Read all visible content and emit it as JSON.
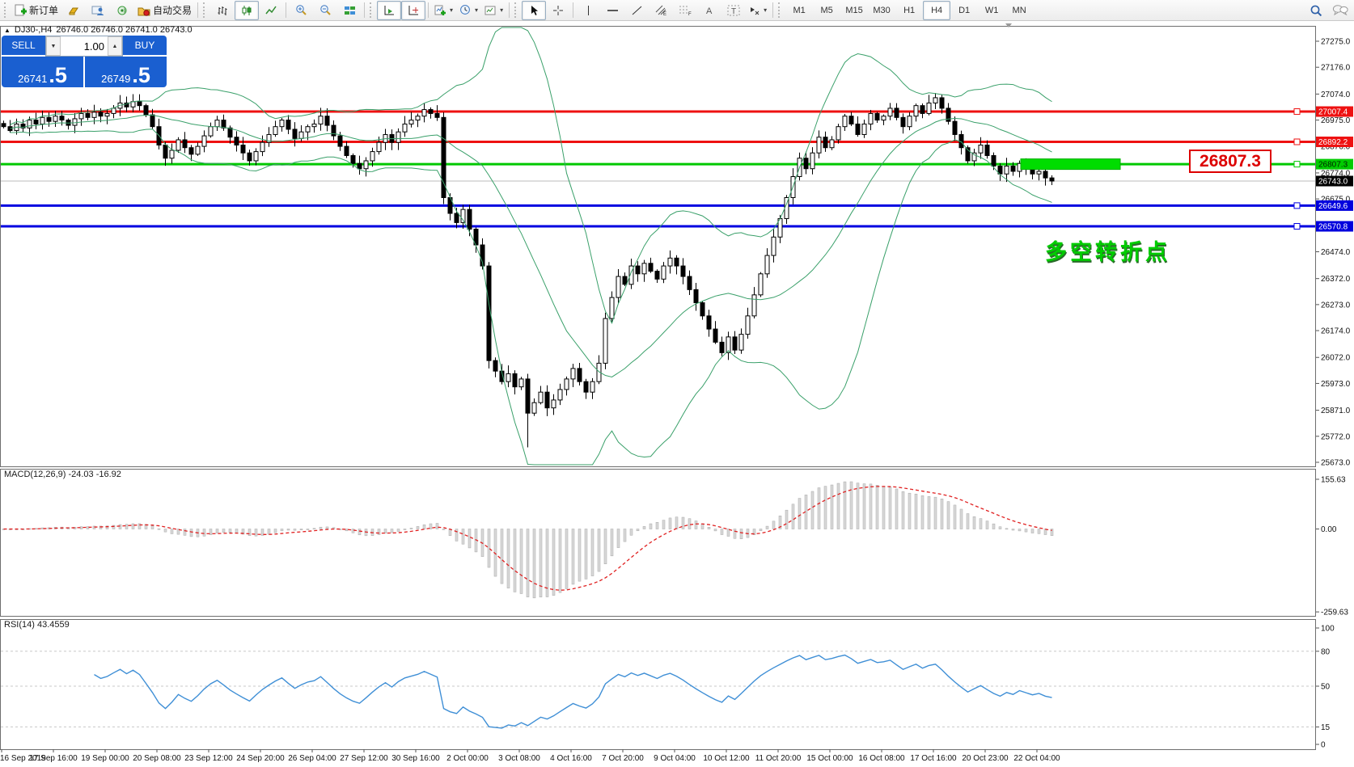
{
  "toolbar": {
    "new_order": "新订单",
    "autotrading": "自动交易",
    "timeframes": [
      "M1",
      "M5",
      "M15",
      "M30",
      "H1",
      "H4",
      "D1",
      "W1",
      "MN"
    ],
    "active_timeframe": "H4"
  },
  "header": {
    "collapse_arrow": "▲",
    "title": "DJ30-,H4",
    "ohlc": "26746.0 26746.0 26741.0 26743.0"
  },
  "one_click": {
    "sell_label": "SELL",
    "buy_label": "BUY",
    "volume": "1.00",
    "sell_price": "26741",
    "sell_pip": ".5",
    "buy_price": "26749",
    "buy_pip": ".5"
  },
  "annotation": {
    "text": "多空转折点",
    "color": "#00cc00"
  },
  "price_label": {
    "text": "26807.3",
    "color": "#dd0000"
  },
  "indicator_labels": {
    "macd": "MACD(12,26,9) -24.03 -16.92",
    "rsi": "RSI(14) 43.4559"
  },
  "axis": {
    "main_ticks": [
      27275.0,
      27176.0,
      27074.0,
      26975.0,
      26876.0,
      26774.0,
      26675.0,
      26474.0,
      26372.0,
      26273.0,
      26174.0,
      26072.0,
      25973.0,
      25871.0,
      25772.0,
      25673.0
    ],
    "macd_ticks": [
      155.63,
      0.0,
      -259.63
    ],
    "rsi_ticks": [
      100,
      80,
      50,
      15,
      0
    ],
    "badges": [
      {
        "text": "27007.4",
        "price": 27007.4,
        "bg": "#ee1111",
        "fg": "#ffffff"
      },
      {
        "text": "26892.2",
        "price": 26892.2,
        "bg": "#ee1111",
        "fg": "#ffffff"
      },
      {
        "text": "26807.3",
        "price": 26807.3,
        "bg": "#00cc00",
        "fg": "#002200"
      },
      {
        "text": "26743.0",
        "price": 26743.0,
        "bg": "#000000",
        "fg": "#ffffff"
      },
      {
        "text": "26649.6",
        "price": 26649.6,
        "bg": "#0000dd",
        "fg": "#ffffff"
      },
      {
        "text": "26570.8",
        "price": 26570.8,
        "bg": "#0000dd",
        "fg": "#ffffff"
      }
    ]
  },
  "chart_data": {
    "type": "candlestick",
    "symbol": "DJ30-",
    "timeframe": "H4",
    "ylim": [
      25673,
      27275
    ],
    "x_labels": [
      "16 Sep 2019",
      "17 Sep 16:00",
      "19 Sep 00:00",
      "20 Sep 08:00",
      "23 Sep 12:00",
      "24 Sep 20:00",
      "26 Sep 04:00",
      "27 Sep 12:00",
      "30 Sep 16:00",
      "2 Oct 00:00",
      "3 Oct 08:00",
      "4 Oct 16:00",
      "7 Oct 20:00",
      "9 Oct 04:00",
      "10 Oct 12:00",
      "11 Oct 20:00",
      "15 Oct 00:00",
      "16 Oct 08:00",
      "17 Oct 16:00",
      "20 Oct 23:00",
      "22 Oct 04:00"
    ],
    "closes": [
      26950,
      26935,
      26960,
      26945,
      26975,
      26960,
      26985,
      26970,
      26990,
      26975,
      26955,
      26980,
      27000,
      26985,
      27005,
      26990,
      27000,
      27020,
      27040,
      27025,
      27045,
      27030,
      26995,
      26950,
      26880,
      26830,
      26860,
      26900,
      26870,
      26845,
      26875,
      26915,
      26950,
      26975,
      26945,
      26910,
      26880,
      26850,
      26820,
      26855,
      26890,
      26920,
      26950,
      26975,
      26940,
      26905,
      26930,
      26950,
      26960,
      26990,
      26955,
      26915,
      26875,
      26840,
      26810,
      26790,
      26820,
      26855,
      26890,
      26920,
      26890,
      26930,
      26960,
      26975,
      26990,
      27015,
      27000,
      26985,
      26680,
      26620,
      26585,
      26635,
      26560,
      26500,
      26420,
      26060,
      26020,
      25980,
      26010,
      25960,
      25990,
      25860,
      25900,
      25940,
      25880,
      25910,
      25950,
      25990,
      26030,
      25980,
      25940,
      25980,
      26050,
      26220,
      26300,
      26380,
      26350,
      26420,
      26390,
      26430,
      26400,
      26370,
      26420,
      26450,
      26420,
      26380,
      26330,
      26280,
      26230,
      26180,
      26130,
      26090,
      26150,
      26100,
      26160,
      26230,
      26310,
      26390,
      26460,
      26530,
      26600,
      26680,
      26760,
      26830,
      26790,
      26850,
      26910,
      26870,
      26900,
      26950,
      26990,
      26960,
      26920,
      26960,
      27000,
      26975,
      26990,
      27020,
      26985,
      26950,
      26990,
      27030,
      27000,
      27040,
      27060,
      27020,
      26970,
      26920,
      26870,
      26820,
      26850,
      26880,
      26840,
      26800,
      26770,
      26800,
      26780,
      26810,
      26790,
      26770,
      26780,
      26755,
      26743
    ],
    "wick_low_overrides": {
      "81": 25730
    },
    "wick_high_overrides": {
      "18": 27070,
      "144": 27078
    },
    "hlines": [
      {
        "price": 27007.4,
        "color": "#ee1111",
        "width": 3
      },
      {
        "price": 26892.2,
        "color": "#ee1111",
        "width": 3
      },
      {
        "price": 26807.3,
        "color": "#00c800",
        "width": 3
      },
      {
        "price": 26743.0,
        "color": "#bbbbbb",
        "width": 1
      },
      {
        "price": 26649.6,
        "color": "#0000e0",
        "width": 3
      },
      {
        "price": 26570.8,
        "color": "#0000e0",
        "width": 3
      }
    ],
    "highlight_zone": {
      "price": 26807.3,
      "color": "#00dd00"
    },
    "indicators": {
      "bollinger": {
        "period": 20,
        "deviation": 2,
        "color": "#3aa06a"
      },
      "macd": {
        "fast": 12,
        "slow": 26,
        "signal": 9,
        "current": -24.03,
        "signal_current": -16.92,
        "hist_color": "#d8d8d8",
        "signal_color": "#e02020"
      },
      "rsi": {
        "period": 14,
        "current": 43.4559,
        "levels": [
          80,
          50,
          15
        ],
        "color": "#3f8fd6"
      }
    }
  }
}
